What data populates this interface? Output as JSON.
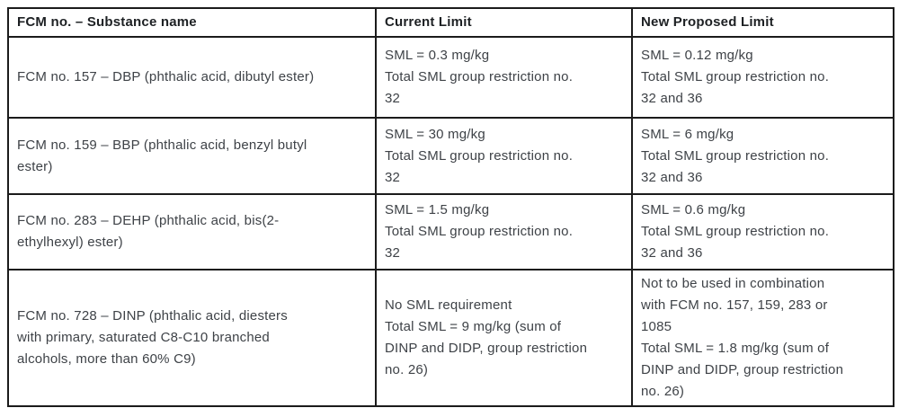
{
  "page": {
    "background_color": "#ffffff",
    "border_color": "#1b1b1b",
    "text_color": "#3e4247"
  },
  "table": {
    "headers": [
      "FCM no. – Substance name",
      "Current Limit",
      "New Proposed Limit"
    ],
    "rows": [
      {
        "substance": "FCM no. 157 – DBP (phthalic acid, dibutyl ester)",
        "current_limit": "SML = 0.3 mg/kg\nTotal SML group restriction no.\n32",
        "new_proposed_limit": "SML = 0.12 mg/kg\nTotal SML group restriction no.\n32 and 36"
      },
      {
        "substance": "FCM no. 159 – BBP (phthalic acid, benzyl butyl\nester)",
        "current_limit": "SML = 30 mg/kg\nTotal SML group restriction no.\n32",
        "new_proposed_limit": "SML = 6 mg/kg\nTotal SML group restriction no.\n32 and 36"
      },
      {
        "substance": "FCM no. 283 – DEHP (phthalic acid, bis(2-\nethylhexyl) ester)",
        "current_limit": "SML = 1.5 mg/kg\nTotal SML group restriction no.\n32",
        "new_proposed_limit": "SML = 0.6 mg/kg\nTotal SML group restriction no.\n32 and 36"
      },
      {
        "substance": "FCM no. 728 – DINP (phthalic acid, diesters\nwith primary, saturated C8-C10 branched\nalcohols, more than 60% C9)",
        "current_limit": "No SML requirement\nTotal SML = 9 mg/kg (sum of\nDINP and DIDP, group restriction\nno. 26)",
        "new_proposed_limit": "Not to be used in combination\nwith FCM no. 157, 159, 283 or\n1085\nTotal SML = 1.8 mg/kg (sum of\nDINP and DIDP, group restriction\nno. 26)"
      }
    ]
  }
}
